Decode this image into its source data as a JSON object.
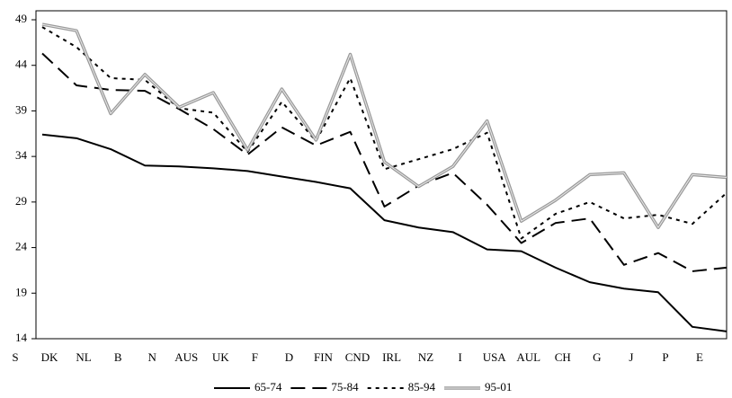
{
  "chart_data": {
    "type": "line",
    "categories": [
      "S",
      "DK",
      "NL",
      "B",
      "N",
      "AUS",
      "UK",
      "F",
      "D",
      "FIN",
      "CND",
      "IRL",
      "NZ",
      "I",
      "USA",
      "AUL",
      "CH",
      "G",
      "J",
      "P",
      "E"
    ],
    "series": [
      {
        "name": "65-74",
        "color": "#000000",
        "values": [
          36.4,
          36.0,
          34.8,
          33.0,
          32.9,
          32.7,
          32.4,
          31.8,
          31.2,
          30.5,
          27.0,
          26.2,
          25.7,
          23.8,
          23.6,
          21.8,
          20.2,
          19.5,
          19.1,
          15.3,
          14.8
        ]
      },
      {
        "name": "75-84",
        "color": "#000000",
        "values": [
          45.3,
          41.8,
          41.3,
          41.2,
          39.2,
          37.0,
          34.2,
          37.2,
          35.2,
          36.7,
          28.5,
          30.8,
          32.2,
          28.7,
          24.5,
          26.7,
          27.2,
          22.1,
          23.4,
          21.4,
          21.8
        ]
      },
      {
        "name": "85-94",
        "color": "#000000",
        "values": [
          48.2,
          46.0,
          42.6,
          42.4,
          39.3,
          38.8,
          34.5,
          40.0,
          35.7,
          42.6,
          32.6,
          33.7,
          34.8,
          36.6,
          25.0,
          27.7,
          29.0,
          27.2,
          27.6,
          26.6,
          30.0
        ]
      },
      {
        "name": "95-01",
        "color": "#9a9a9a",
        "values": [
          48.5,
          47.8,
          38.7,
          43.0,
          39.4,
          41.0,
          34.7,
          41.4,
          35.8,
          45.2,
          33.4,
          30.7,
          32.9,
          37.9,
          26.9,
          29.2,
          32.0,
          32.2,
          26.2,
          32.0,
          31.7
        ]
      }
    ],
    "ylim": [
      14,
      49
    ],
    "yticks": [
      14,
      19,
      24,
      29,
      34,
      39,
      44,
      49
    ],
    "grid": false,
    "legend": "bottom"
  }
}
